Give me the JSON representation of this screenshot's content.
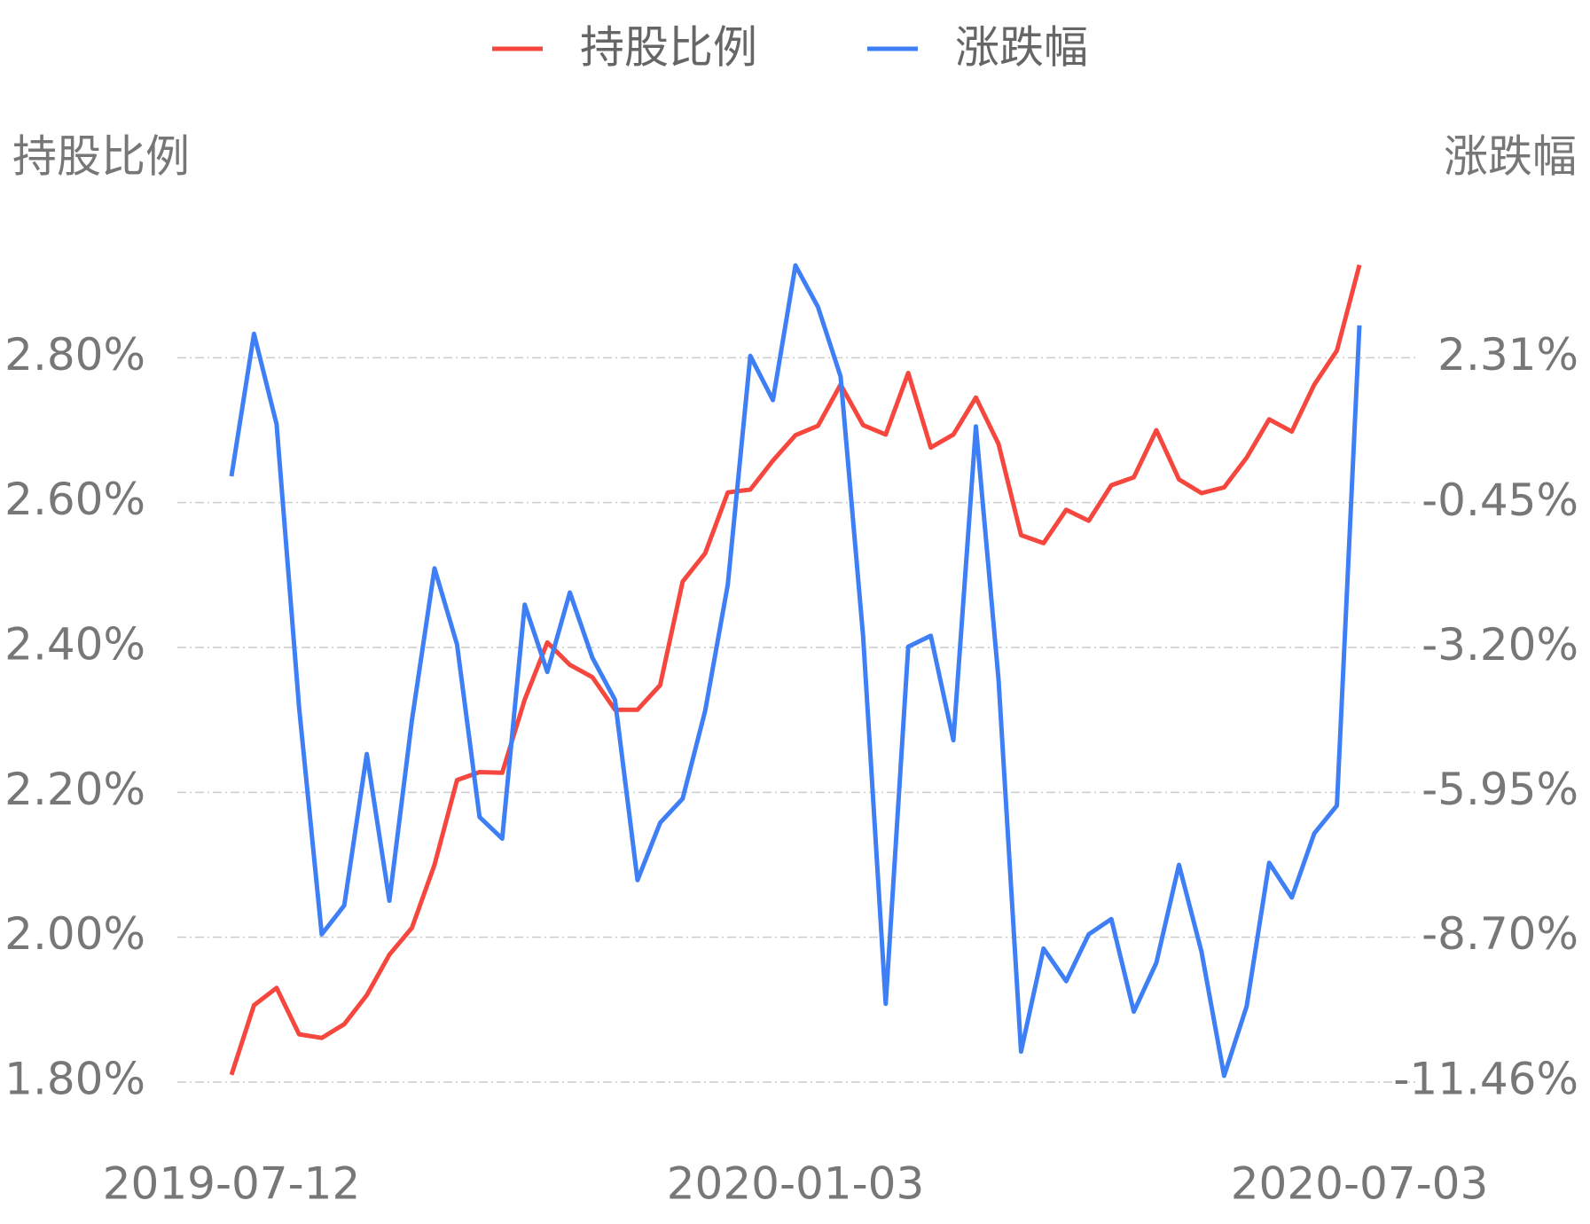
{
  "chart_data": {
    "type": "line",
    "legend": "top",
    "grid": true,
    "y_label": "持股比例",
    "y2_label": "涨跌幅",
    "categories": [
      "2019-07-12",
      null,
      null,
      null,
      null,
      null,
      null,
      null,
      null,
      null,
      null,
      null,
      null,
      null,
      null,
      null,
      null,
      null,
      null,
      null,
      null,
      null,
      null,
      null,
      null,
      "2020-01-03",
      null,
      null,
      null,
      null,
      null,
      null,
      null,
      null,
      null,
      null,
      null,
      null,
      null,
      null,
      null,
      null,
      null,
      null,
      null,
      null,
      null,
      null,
      null,
      null,
      "2020-07-03"
    ],
    "ylim": [
      1.8,
      3.0
    ],
    "yticks": [
      {
        "value": 1.8,
        "label": "1.80%"
      },
      {
        "value": 2.0,
        "label": "2.00%"
      },
      {
        "value": 2.2,
        "label": "2.20%"
      },
      {
        "value": 2.4,
        "label": "2.40%"
      },
      {
        "value": 2.6,
        "label": "2.60%"
      },
      {
        "value": 2.8,
        "label": "2.80%"
      }
    ],
    "y2lim": [
      -11.46,
      5.07
    ],
    "y2ticks": [
      {
        "value": -11.46,
        "label": "-11.46%"
      },
      {
        "value": -8.7,
        "label": "-8.70%"
      },
      {
        "value": -5.95,
        "label": "-5.95%"
      },
      {
        "value": -3.2,
        "label": "-3.20%"
      },
      {
        "value": -0.45,
        "label": "-0.45%"
      },
      {
        "value": 2.31,
        "label": "2.31%"
      }
    ],
    "series": [
      {
        "name": "持股比例",
        "color": "#f5473e",
        "values": [
          1.81,
          1.906,
          1.93,
          1.866,
          1.861,
          1.88,
          1.92,
          1.976,
          2.013,
          2.1,
          2.217,
          2.228,
          2.227,
          2.328,
          2.407,
          2.376,
          2.359,
          2.314,
          2.314,
          2.348,
          2.491,
          2.53,
          2.614,
          2.618,
          2.658,
          2.693,
          2.706,
          2.763,
          2.707,
          2.694,
          2.779,
          2.676,
          2.694,
          2.745,
          2.681,
          2.555,
          2.544,
          2.59,
          2.575,
          2.624,
          2.635,
          2.7,
          2.632,
          2.613,
          2.621,
          2.662,
          2.715,
          2.698,
          2.763,
          2.81,
          2.928
        ]
      },
      {
        "name": "涨跌幅",
        "color": "#3f7ff5",
        "axis": "y2",
        "values": [
          0.06,
          2.77,
          1.05,
          -4.34,
          -8.65,
          -8.1,
          -5.22,
          -8.01,
          -4.58,
          -1.69,
          -3.14,
          -6.42,
          -6.83,
          -2.38,
          -3.66,
          -2.15,
          -3.39,
          -4.19,
          -7.62,
          -6.53,
          -6.07,
          -4.4,
          -2.0,
          2.35,
          1.51,
          4.07,
          3.28,
          1.96,
          -2.98,
          -9.97,
          -3.18,
          -2.97,
          -4.96,
          1.01,
          -3.8,
          -10.88,
          -8.92,
          -9.54,
          -8.65,
          -8.36,
          -10.12,
          -9.19,
          -7.33,
          -8.98,
          -11.34,
          -10.02,
          -7.29,
          -7.95,
          -6.73,
          -6.2,
          2.93
        ]
      }
    ]
  }
}
